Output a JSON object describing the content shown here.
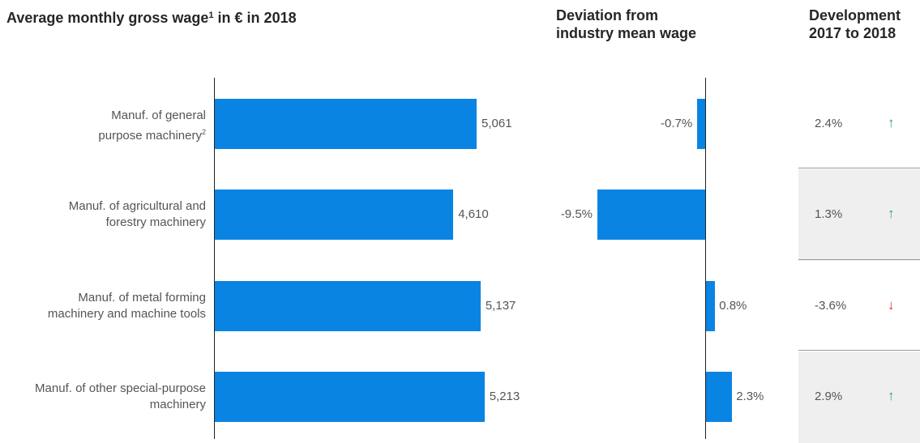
{
  "headers": {
    "wage_title": "Average monthly gross wage",
    "wage_title_sup": "1",
    "wage_title_suffix": " in € in 2018",
    "deviation_title": "Deviation from\nindustry mean wage",
    "development_title": "Development\n2017 to 2018"
  },
  "colors": {
    "bar": "#0a84e3",
    "shade": "#efefef",
    "up": "#2fa36b",
    "down": "#e0302a"
  },
  "chart_data": [
    {
      "type": "bar",
      "orientation": "horizontal",
      "title": "Average monthly gross wage¹ in € in 2018",
      "categories": [
        "Manuf. of general purpose machinery²",
        "Manuf. of agricultural and forestry machinery",
        "Manuf. of metal forming machinery and machine tools",
        "Manuf. of other special-purpose machinery"
      ],
      "values": [
        5061,
        4610,
        5137,
        5213
      ],
      "labels": [
        "5,061",
        "4,610",
        "5,137",
        "5,213"
      ],
      "xlim": [
        0,
        5900
      ]
    },
    {
      "type": "bar",
      "orientation": "horizontal",
      "title": "Deviation from industry mean wage",
      "values": [
        -0.7,
        -9.5,
        0.8,
        2.3
      ],
      "labels": [
        "-0.7%",
        "-9.5%",
        "0.8%",
        "2.3%"
      ],
      "unit": "%",
      "xlim": [
        -10,
        3
      ]
    },
    {
      "type": "table",
      "title": "Development 2017 to 2018",
      "values": [
        2.4,
        1.3,
        -3.6,
        2.9
      ],
      "labels": [
        "2.4%",
        "1.3%",
        "-3.6%",
        "2.9%"
      ],
      "direction": [
        "up",
        "up",
        "down",
        "up"
      ]
    }
  ],
  "rows": [
    {
      "label_lines": [
        "Manuf. of general",
        "purpose machinery"
      ],
      "label_sup": "2",
      "shaded": false
    },
    {
      "label_lines": [
        "Manuf. of agricultural and",
        "forestry machinery"
      ],
      "label_sup": "",
      "shaded": true
    },
    {
      "label_lines": [
        "Manuf. of metal forming",
        "machinery and machine tools"
      ],
      "label_sup": "",
      "shaded": false
    },
    {
      "label_lines": [
        "Manuf. of other special-purpose",
        "machinery"
      ],
      "label_sup": "",
      "shaded": true
    }
  ],
  "icons": {
    "up": "arrow-up-icon",
    "down": "arrow-down-icon"
  }
}
